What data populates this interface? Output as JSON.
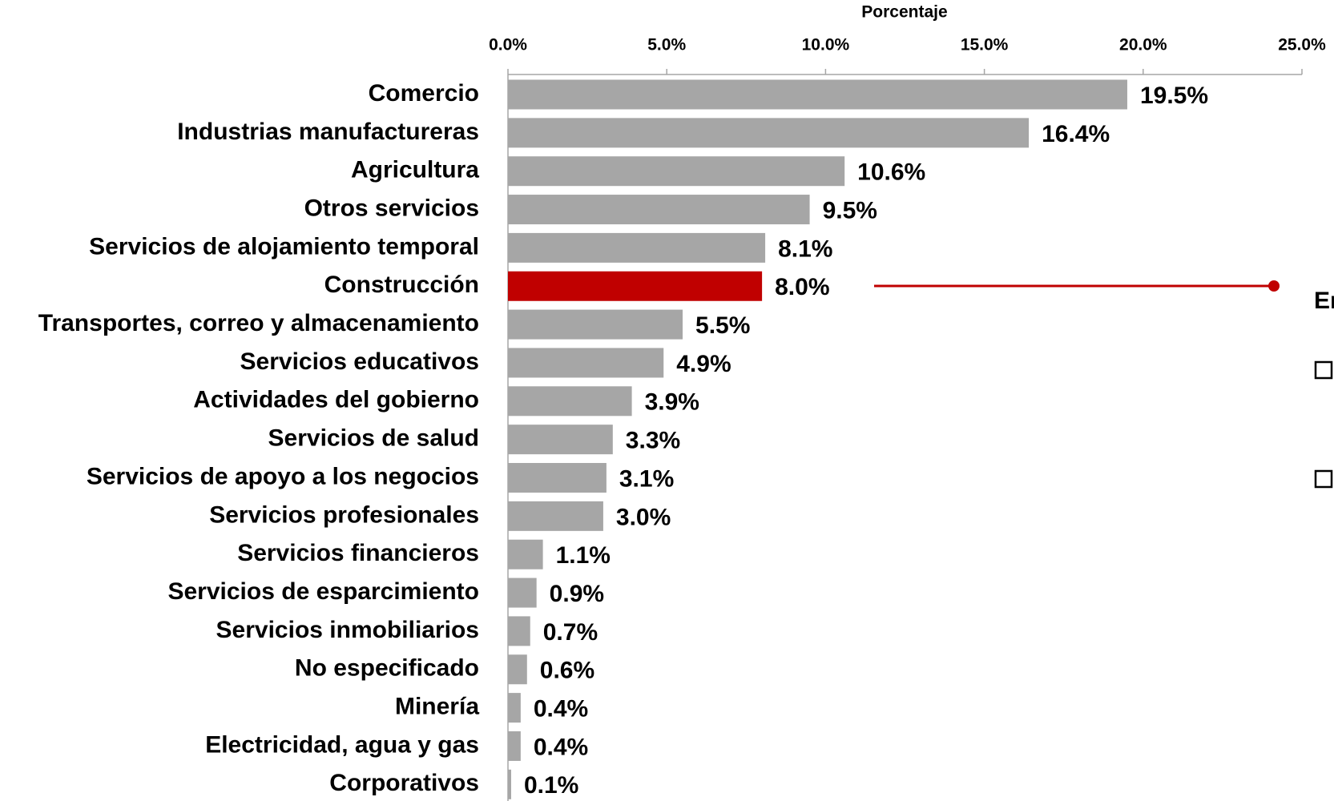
{
  "chart_data": {
    "type": "bar",
    "orientation": "horizontal",
    "x_axis_label": "Porcentaje",
    "categories": [
      "Comercio",
      "Industrias manufactureras",
      "Agricultura",
      "Otros servicios",
      "Servicios de alojamiento temporal",
      "Construcción",
      "Transportes, correo y almacenamiento",
      "Servicios educativos",
      "Actividades del gobierno",
      "Servicios de salud",
      "Servicios de apoyo a los negocios",
      "Servicios profesionales",
      "Servicios financieros",
      "Servicios de esparcimiento",
      "Servicios inmobiliarios",
      "No especificado",
      "Minería",
      "Electricidad, agua y gas",
      "Corporativos"
    ],
    "values": [
      19.5,
      16.4,
      10.6,
      9.5,
      8.1,
      8.0,
      5.5,
      4.9,
      3.9,
      3.3,
      3.1,
      3.0,
      1.1,
      0.9,
      0.7,
      0.6,
      0.4,
      0.4,
      0.1
    ],
    "value_labels": [
      "19.5%",
      "16.4%",
      "10.6%",
      "9.5%",
      "8.1%",
      "8.0%",
      "5.5%",
      "4.9%",
      "3.9%",
      "3.3%",
      "3.1%",
      "3.0%",
      "1.1%",
      "0.9%",
      "0.7%",
      "0.6%",
      "0.4%",
      "0.4%",
      "0.1%"
    ],
    "colors": [
      "#a6a6a6",
      "#a6a6a6",
      "#a6a6a6",
      "#a6a6a6",
      "#a6a6a6",
      "#c00000",
      "#a6a6a6",
      "#a6a6a6",
      "#a6a6a6",
      "#a6a6a6",
      "#a6a6a6",
      "#a6a6a6",
      "#a6a6a6",
      "#a6a6a6",
      "#a6a6a6",
      "#a6a6a6",
      "#a6a6a6",
      "#a6a6a6",
      "#a6a6a6"
    ],
    "xlim": [
      0,
      25
    ],
    "xticks": [
      {
        "value": 0,
        "label": "0.0%"
      },
      {
        "value": 5,
        "label": "5.0%"
      },
      {
        "value": 10,
        "label": "10.0%"
      },
      {
        "value": 15,
        "label": "15.0%"
      },
      {
        "value": 20,
        "label": "20.0%"
      },
      {
        "value": 25,
        "label": "25.0%"
      }
    ],
    "annotation": "En"
  }
}
